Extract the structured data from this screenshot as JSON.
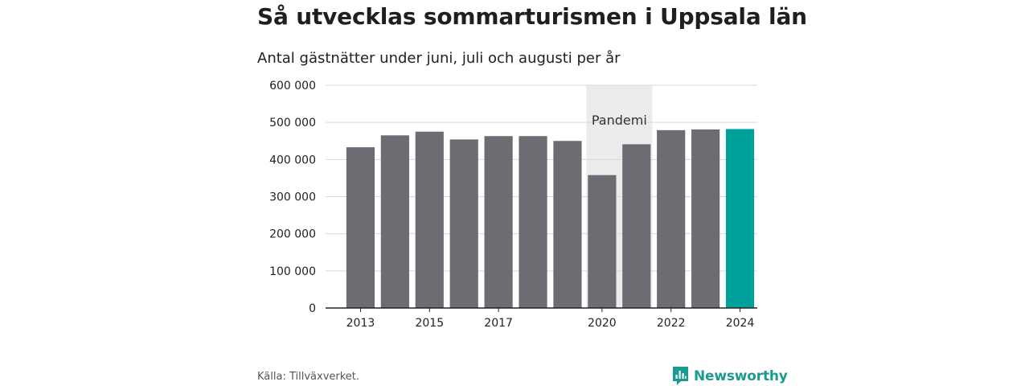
{
  "header": {
    "title": "Så utvecklas sommarturismen i Uppsala län",
    "subtitle": "Antal gästnätter under juni, juli och augusti per år"
  },
  "footer": {
    "source": "Källa: Tillväxverket.",
    "brand": "Newsworthy"
  },
  "colors": {
    "bar": "#6d6c72",
    "highlight": "#00a19a",
    "band": "#ececec",
    "grid": "#d9d9d9",
    "brand": "#1b9a8f"
  },
  "chart_data": {
    "type": "bar",
    "title": "Så utvecklas sommarturismen i Uppsala län",
    "subtitle": "Antal gästnätter under juni, juli och augusti per år",
    "categories": [
      "2013",
      "2014",
      "2015",
      "2016",
      "2017",
      "2018",
      "2019",
      "2020",
      "2021",
      "2022",
      "2023",
      "2024"
    ],
    "values": [
      433000,
      465000,
      475000,
      454000,
      463000,
      463000,
      450000,
      358000,
      441000,
      479000,
      481000,
      482000
    ],
    "x_tick_labels": [
      "2013",
      "",
      "2015",
      "",
      "2017",
      "",
      "",
      "2020",
      "",
      "2022",
      "",
      "2024"
    ],
    "highlight_category": "2024",
    "ylim": [
      0,
      600000
    ],
    "y_ticks": [
      0,
      100000,
      200000,
      300000,
      400000,
      500000,
      600000
    ],
    "y_tick_labels": [
      "0",
      "100 000",
      "200 000",
      "300 000",
      "400 000",
      "500 000",
      "600 000"
    ],
    "grid": true,
    "annotation": {
      "label": "Pandemi",
      "from_category": "2020",
      "to_category": "2021"
    }
  }
}
